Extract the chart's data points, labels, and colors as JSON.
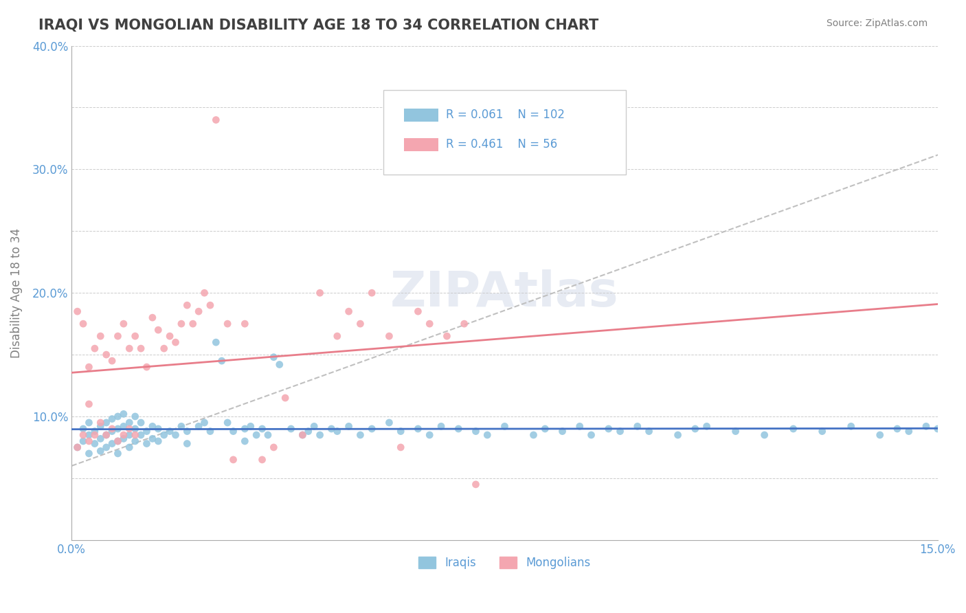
{
  "title": "IRAQI VS MONGOLIAN DISABILITY AGE 18 TO 34 CORRELATION CHART",
  "source": "Source: ZipAtlas.com",
  "xlabel": "",
  "ylabel": "Disability Age 18 to 34",
  "xlim": [
    0.0,
    0.15
  ],
  "ylim": [
    0.0,
    0.4
  ],
  "xticks": [
    0.0,
    0.025,
    0.05,
    0.075,
    0.1,
    0.125,
    0.15
  ],
  "yticks": [
    0.0,
    0.05,
    0.1,
    0.15,
    0.2,
    0.25,
    0.3,
    0.35,
    0.4
  ],
  "ytick_labels": [
    "",
    "",
    "10.0%",
    "",
    "20.0%",
    "",
    "30.0%",
    "",
    "40.0%"
  ],
  "xtick_labels": [
    "0.0%",
    "",
    "",
    "",
    "",
    "",
    "15.0%"
  ],
  "iraqis_R": 0.061,
  "iraqis_N": 102,
  "mongolians_R": 0.461,
  "mongolians_N": 56,
  "iraqis_color": "#92C5DE",
  "mongolians_color": "#F4A6B0",
  "iraqis_line_color": "#4472C4",
  "mongolians_line_color": "#E87D8A",
  "trend_line_color": "#C0C0C0",
  "watermark": "ZIPAtlas",
  "watermark_color": "#D0D8E8",
  "legend_label_iraqis": "Iraqis",
  "legend_label_mongolians": "Mongolians",
  "background_color": "#FFFFFF",
  "grid_color": "#CCCCCC",
  "title_color": "#404040",
  "axis_label_color": "#5B9BD5",
  "iraqis_scatter": {
    "x": [
      0.001,
      0.002,
      0.002,
      0.003,
      0.003,
      0.003,
      0.004,
      0.004,
      0.005,
      0.005,
      0.005,
      0.006,
      0.006,
      0.006,
      0.007,
      0.007,
      0.007,
      0.008,
      0.008,
      0.008,
      0.008,
      0.009,
      0.009,
      0.009,
      0.01,
      0.01,
      0.01,
      0.011,
      0.011,
      0.011,
      0.012,
      0.012,
      0.013,
      0.013,
      0.014,
      0.014,
      0.015,
      0.015,
      0.016,
      0.017,
      0.018,
      0.019,
      0.02,
      0.02,
      0.022,
      0.023,
      0.024,
      0.025,
      0.026,
      0.027,
      0.028,
      0.03,
      0.03,
      0.031,
      0.032,
      0.033,
      0.034,
      0.035,
      0.036,
      0.038,
      0.04,
      0.041,
      0.042,
      0.043,
      0.045,
      0.046,
      0.048,
      0.05,
      0.052,
      0.055,
      0.057,
      0.06,
      0.062,
      0.064,
      0.067,
      0.07,
      0.072,
      0.075,
      0.08,
      0.082,
      0.085,
      0.088,
      0.09,
      0.093,
      0.095,
      0.098,
      0.1,
      0.105,
      0.108,
      0.11,
      0.115,
      0.12,
      0.125,
      0.13,
      0.135,
      0.14,
      0.143,
      0.145,
      0.148,
      0.15,
      0.152,
      0.155
    ],
    "y": [
      0.075,
      0.08,
      0.09,
      0.085,
      0.095,
      0.07,
      0.088,
      0.078,
      0.092,
      0.082,
      0.072,
      0.095,
      0.085,
      0.075,
      0.098,
      0.088,
      0.078,
      0.1,
      0.09,
      0.08,
      0.07,
      0.102,
      0.092,
      0.082,
      0.095,
      0.085,
      0.075,
      0.1,
      0.09,
      0.08,
      0.085,
      0.095,
      0.088,
      0.078,
      0.092,
      0.082,
      0.09,
      0.08,
      0.085,
      0.088,
      0.085,
      0.092,
      0.088,
      0.078,
      0.092,
      0.095,
      0.088,
      0.16,
      0.145,
      0.095,
      0.088,
      0.09,
      0.08,
      0.092,
      0.085,
      0.09,
      0.085,
      0.148,
      0.142,
      0.09,
      0.085,
      0.088,
      0.092,
      0.085,
      0.09,
      0.088,
      0.092,
      0.085,
      0.09,
      0.095,
      0.088,
      0.09,
      0.085,
      0.092,
      0.09,
      0.088,
      0.085,
      0.092,
      0.085,
      0.09,
      0.088,
      0.092,
      0.085,
      0.09,
      0.088,
      0.092,
      0.088,
      0.085,
      0.09,
      0.092,
      0.088,
      0.085,
      0.09,
      0.088,
      0.092,
      0.085,
      0.09,
      0.088,
      0.092,
      0.09,
      0.085,
      0.088
    ]
  },
  "mongolians_scatter": {
    "x": [
      0.001,
      0.001,
      0.002,
      0.002,
      0.003,
      0.003,
      0.003,
      0.004,
      0.004,
      0.005,
      0.005,
      0.006,
      0.006,
      0.007,
      0.007,
      0.008,
      0.008,
      0.009,
      0.009,
      0.01,
      0.01,
      0.011,
      0.011,
      0.012,
      0.013,
      0.014,
      0.015,
      0.016,
      0.017,
      0.018,
      0.019,
      0.02,
      0.021,
      0.022,
      0.023,
      0.024,
      0.025,
      0.027,
      0.028,
      0.03,
      0.033,
      0.035,
      0.037,
      0.04,
      0.043,
      0.046,
      0.048,
      0.05,
      0.052,
      0.055,
      0.057,
      0.06,
      0.062,
      0.065,
      0.068,
      0.07
    ],
    "y": [
      0.185,
      0.075,
      0.175,
      0.085,
      0.14,
      0.11,
      0.08,
      0.155,
      0.085,
      0.165,
      0.095,
      0.15,
      0.085,
      0.145,
      0.09,
      0.165,
      0.08,
      0.175,
      0.085,
      0.155,
      0.09,
      0.165,
      0.085,
      0.155,
      0.14,
      0.18,
      0.17,
      0.155,
      0.165,
      0.16,
      0.175,
      0.19,
      0.175,
      0.185,
      0.2,
      0.19,
      0.34,
      0.175,
      0.065,
      0.175,
      0.065,
      0.075,
      0.115,
      0.085,
      0.2,
      0.165,
      0.185,
      0.175,
      0.2,
      0.165,
      0.075,
      0.185,
      0.175,
      0.165,
      0.175,
      0.045
    ]
  }
}
